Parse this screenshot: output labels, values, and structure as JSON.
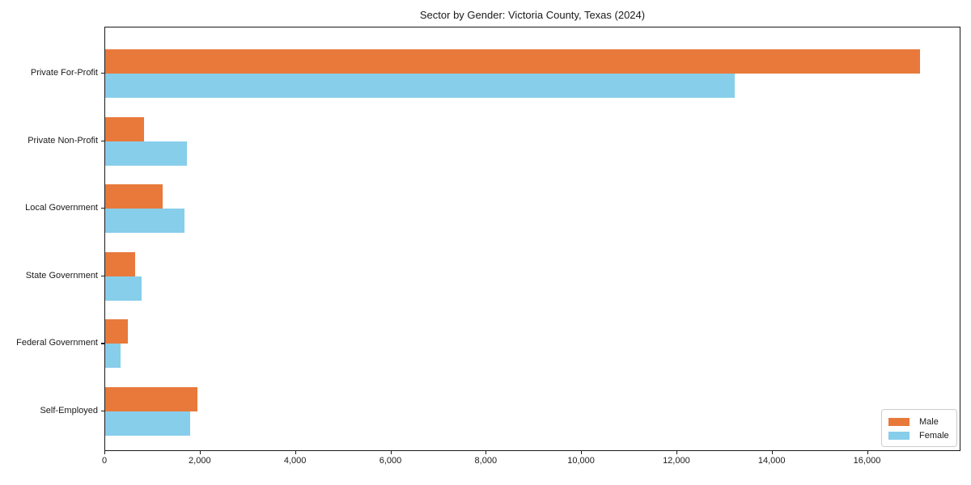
{
  "chart_data": {
    "type": "bar",
    "orientation": "horizontal",
    "title": "Sector by Gender: Victoria County, Texas (2024)",
    "categories": [
      "Private For-Profit",
      "Private Non-Profit",
      "Local Government",
      "State Government",
      "Federal Government",
      "Self-Employed"
    ],
    "series": [
      {
        "name": "Male",
        "color": "#e8793b",
        "values": [
          17100,
          810,
          1200,
          620,
          480,
          1930
        ]
      },
      {
        "name": "Female",
        "color": "#87ceeb",
        "values": [
          13200,
          1720,
          1660,
          760,
          330,
          1780
        ]
      }
    ],
    "xlabel": "",
    "ylabel": "",
    "xlim": [
      0,
      17960
    ],
    "xticks": [
      0,
      2000,
      4000,
      6000,
      8000,
      10000,
      12000,
      14000,
      16000
    ],
    "xtick_labels": [
      "0",
      "2,000",
      "4,000",
      "6,000",
      "8,000",
      "10,000",
      "12,000",
      "14,000",
      "16,000"
    ],
    "grid": false,
    "legend": {
      "position": "lower right",
      "entries": [
        {
          "label": "Male",
          "color": "#e8793b"
        },
        {
          "label": "Female",
          "color": "#87ceeb"
        }
      ]
    }
  }
}
